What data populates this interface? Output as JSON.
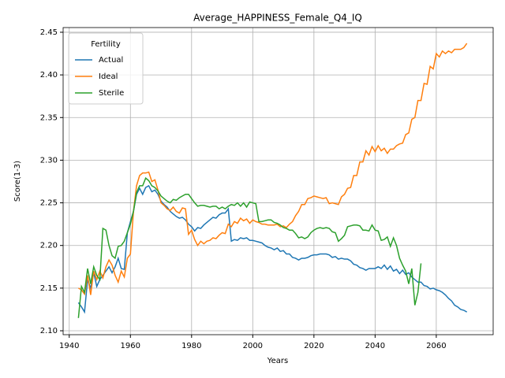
{
  "chart_data": {
    "type": "line",
    "title": "Average_HAPPINESS_Female_Q4_IQ",
    "xlabel": "Years",
    "ylabel": "Score(1-3)",
    "legend_title": "Fertility",
    "legend": "upper left",
    "grid": true,
    "xlim": [
      1938,
      2078.6
    ],
    "ylim": [
      2.0954,
      2.4555
    ],
    "xticks": [
      1940,
      1960,
      1980,
      2000,
      2020,
      2040,
      2060
    ],
    "yticks": [
      {
        "value": 2.1,
        "label": "2.10"
      },
      2.15,
      {
        "value": 2.2,
        "label": "2.20"
      },
      2.25,
      {
        "value": 2.3,
        "label": "2.30"
      },
      2.35,
      {
        "value": 2.4,
        "label": "2.40"
      },
      2.45
    ],
    "x": [
      1943,
      1944,
      1945,
      1946,
      1947,
      1948,
      1949,
      1950,
      1951,
      1952,
      1953,
      1954,
      1955,
      1956,
      1957,
      1958,
      1959,
      1960,
      1961,
      1962,
      1963,
      1964,
      1965,
      1966,
      1967,
      1968,
      1969,
      1970,
      1971,
      1972,
      1973,
      1974,
      1975,
      1976,
      1977,
      1978,
      1979,
      1980,
      1981,
      1982,
      1983,
      1984,
      1985,
      1986,
      1987,
      1988,
      1989,
      1990,
      1991,
      1992,
      1993,
      1994,
      1995,
      1996,
      1997,
      1998,
      1999,
      2000,
      2001,
      2002,
      2003,
      2004,
      2005,
      2006,
      2007,
      2008,
      2009,
      2010,
      2011,
      2012,
      2013,
      2014,
      2015,
      2016,
      2017,
      2018,
      2019,
      2020,
      2021,
      2022,
      2023,
      2024,
      2025,
      2026,
      2027,
      2028,
      2029,
      2030,
      2031,
      2032,
      2033,
      2034,
      2035,
      2036,
      2037,
      2038,
      2039,
      2040,
      2041,
      2042,
      2043,
      2044,
      2045,
      2046,
      2047,
      2048,
      2049,
      2050,
      2051,
      2052,
      2053,
      2054,
      2055,
      2056,
      2057,
      2058,
      2059,
      2060,
      2061,
      2062,
      2063,
      2064,
      2065,
      2066,
      2067,
      2068,
      2069,
      2070
    ],
    "series": [
      {
        "name": "Actual",
        "color": "#1f77b4",
        "values": [
          2.133,
          2.128,
          2.122,
          2.16,
          2.15,
          2.168,
          2.152,
          2.16,
          2.165,
          2.17,
          2.175,
          2.168,
          2.175,
          2.185,
          2.173,
          2.172,
          2.215,
          2.228,
          2.24,
          2.26,
          2.267,
          2.26,
          2.268,
          2.27,
          2.263,
          2.265,
          2.26,
          2.252,
          2.248,
          2.245,
          2.24,
          2.237,
          2.234,
          2.232,
          2.233,
          2.23,
          2.225,
          2.222,
          2.217,
          2.221,
          2.22,
          2.224,
          2.227,
          2.23,
          2.233,
          2.232,
          2.236,
          2.238,
          2.238,
          2.243,
          2.205,
          2.207,
          2.206,
          2.209,
          2.208,
          2.209,
          2.206,
          2.206,
          2.205,
          2.204,
          2.203,
          2.2,
          2.198,
          2.197,
          2.195,
          2.197,
          2.193,
          2.194,
          2.19,
          2.19,
          2.186,
          2.185,
          2.183,
          2.185,
          2.185,
          2.186,
          2.188,
          2.189,
          2.189,
          2.19,
          2.19,
          2.19,
          2.189,
          2.186,
          2.187,
          2.184,
          2.185,
          2.184,
          2.184,
          2.182,
          2.178,
          2.177,
          2.174,
          2.173,
          2.171,
          2.173,
          2.173,
          2.173,
          2.175,
          2.173,
          2.177,
          2.172,
          2.176,
          2.17,
          2.172,
          2.167,
          2.171,
          2.166,
          2.168,
          2.163,
          2.16,
          2.157,
          2.157,
          2.153,
          2.152,
          2.149,
          2.15,
          2.148,
          2.147,
          2.145,
          2.142,
          2.138,
          2.135,
          2.13,
          2.128,
          2.125,
          2.124,
          2.122
        ]
      },
      {
        "name": "Ideal",
        "color": "#ff7f0e",
        "values": [
          2.15,
          2.148,
          2.143,
          2.165,
          2.142,
          2.17,
          2.16,
          2.17,
          2.162,
          2.175,
          2.183,
          2.177,
          2.165,
          2.157,
          2.17,
          2.163,
          2.185,
          2.19,
          2.24,
          2.27,
          2.282,
          2.285,
          2.285,
          2.286,
          2.275,
          2.277,
          2.265,
          2.25,
          2.247,
          2.243,
          2.241,
          2.245,
          2.24,
          2.238,
          2.244,
          2.243,
          2.213,
          2.218,
          2.207,
          2.2,
          2.205,
          2.202,
          2.205,
          2.206,
          2.209,
          2.208,
          2.212,
          2.215,
          2.214,
          2.225,
          2.222,
          2.228,
          2.226,
          2.232,
          2.229,
          2.231,
          2.226,
          2.23,
          2.228,
          2.227,
          2.225,
          2.225,
          2.224,
          2.224,
          2.224,
          2.225,
          2.222,
          2.223,
          2.221,
          2.225,
          2.228,
          2.235,
          2.24,
          2.248,
          2.248,
          2.255,
          2.256,
          2.258,
          2.257,
          2.256,
          2.255,
          2.256,
          2.249,
          2.25,
          2.249,
          2.248,
          2.257,
          2.26,
          2.267,
          2.268,
          2.282,
          2.282,
          2.298,
          2.298,
          2.311,
          2.306,
          2.316,
          2.31,
          2.317,
          2.311,
          2.314,
          2.308,
          2.313,
          2.313,
          2.317,
          2.319,
          2.32,
          2.33,
          2.332,
          2.348,
          2.35,
          2.37,
          2.37,
          2.39,
          2.389,
          2.41,
          2.407,
          2.425,
          2.421,
          2.428,
          2.425,
          2.428,
          2.426,
          2.43,
          2.43,
          2.43,
          2.432,
          2.437
        ]
      },
      {
        "name": "Sterile",
        "color": "#2ca02c",
        "values": [
          2.115,
          2.152,
          2.145,
          2.173,
          2.155,
          2.175,
          2.165,
          2.16,
          2.22,
          2.218,
          2.2,
          2.188,
          2.185,
          2.199,
          2.2,
          2.205,
          2.215,
          2.225,
          2.24,
          2.262,
          2.27,
          2.27,
          2.279,
          2.276,
          2.27,
          2.268,
          2.264,
          2.258,
          2.255,
          2.252,
          2.25,
          2.254,
          2.253,
          2.256,
          2.258,
          2.26,
          2.26,
          2.255,
          2.25,
          2.246,
          2.247,
          2.247,
          2.246,
          2.245,
          2.246,
          2.246,
          2.243,
          2.245,
          2.243,
          2.246,
          2.248,
          2.247,
          2.25,
          2.246,
          2.25,
          2.245,
          2.251,
          2.25,
          2.249,
          2.228,
          2.228,
          2.229,
          2.23,
          2.23,
          2.227,
          2.226,
          2.224,
          2.221,
          2.22,
          2.218,
          2.218,
          2.214,
          2.209,
          2.21,
          2.208,
          2.21,
          2.215,
          2.218,
          2.22,
          2.221,
          2.22,
          2.221,
          2.22,
          2.216,
          2.215,
          2.205,
          2.208,
          2.212,
          2.222,
          2.223,
          2.224,
          2.224,
          2.223,
          2.218,
          2.218,
          2.217,
          2.224,
          2.218,
          2.217,
          2.206,
          2.207,
          2.21,
          2.199,
          2.209,
          2.2,
          2.185,
          2.177,
          2.17,
          2.155,
          2.173,
          2.13,
          2.145,
          2.179,
          null,
          null,
          null,
          null,
          null,
          null,
          null,
          null,
          null,
          null,
          null,
          null,
          null,
          null,
          null
        ]
      }
    ]
  }
}
